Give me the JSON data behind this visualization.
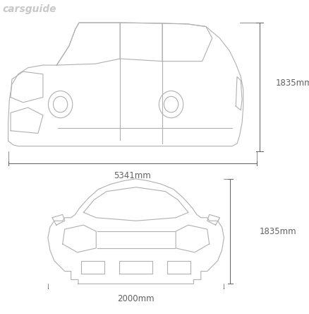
{
  "bg_color": "#ffffff",
  "line_color": "#b0b0b0",
  "text_color": "#606060",
  "watermark_color": "#c8c8c8",
  "watermark_text": "carsguide",
  "length_label": "5341mm",
  "width_label": "2000mm",
  "height_label": "1835mm",
  "height_label2": "1835mm",
  "dim_font_size": 8.5,
  "watermark_font_size": 10,
  "fig_width": 4.38,
  "fig_height": 4.44
}
